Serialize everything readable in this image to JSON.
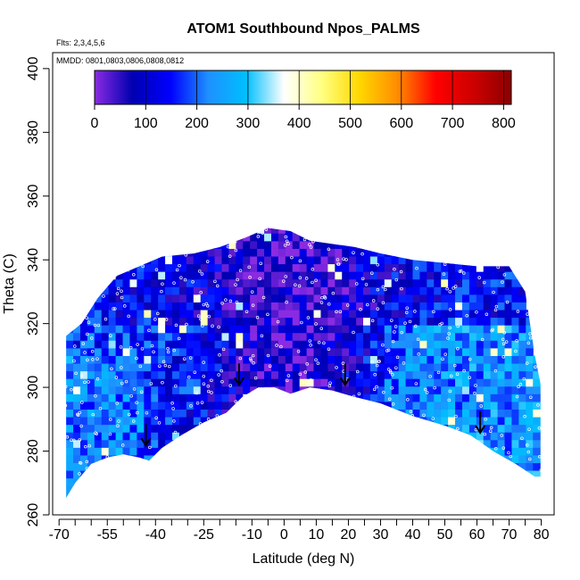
{
  "chart_data": {
    "type": "heatmap",
    "title": "ATOM1 Southbound Npos_PALMS",
    "subtitle_flights": "Flts: 2,3,4,5,6",
    "subtitle_dates": "MMDD: 0801,0803,0806,0808,0812",
    "xlabel": "Latitude (deg N)",
    "ylabel": "Theta (C)",
    "xlim": [
      -72,
      84
    ],
    "ylim": [
      260,
      405
    ],
    "x_ticks": [
      -70,
      -55,
      -40,
      -25,
      -10,
      0,
      10,
      20,
      30,
      40,
      50,
      60,
      70,
      80
    ],
    "x_minor_ticks": [
      -65,
      -60,
      -50,
      -45,
      -35,
      -30,
      -20,
      -15,
      -5,
      5,
      15,
      25,
      35,
      45,
      55,
      65,
      75
    ],
    "y_ticks": [
      260,
      280,
      300,
      320,
      340,
      360,
      380,
      400
    ],
    "colorbar": {
      "ticks": [
        0,
        100,
        200,
        300,
        400,
        500,
        600,
        700,
        800
      ],
      "range": [
        0,
        815
      ],
      "colors": [
        "#8a2be2",
        "#0000b0",
        "#0000ff",
        "#1e90ff",
        "#00bfff",
        "#ffffff",
        "#ffff80",
        "#ffd700",
        "#ff8c00",
        "#ff0000",
        "#cd0000",
        "#8b0000"
      ]
    },
    "bottom_boundary": [
      {
        "lat": -68,
        "theta": 265
      },
      {
        "lat": -65,
        "theta": 270
      },
      {
        "lat": -60,
        "theta": 276
      },
      {
        "lat": -55,
        "theta": 278
      },
      {
        "lat": -50,
        "theta": 279
      },
      {
        "lat": -45,
        "theta": 278
      },
      {
        "lat": -42,
        "theta": 277
      },
      {
        "lat": -38,
        "theta": 281
      },
      {
        "lat": -32,
        "theta": 285
      },
      {
        "lat": -25,
        "theta": 289
      },
      {
        "lat": -18,
        "theta": 292
      },
      {
        "lat": -13,
        "theta": 297
      },
      {
        "lat": -8,
        "theta": 300
      },
      {
        "lat": -3,
        "theta": 300
      },
      {
        "lat": 2,
        "theta": 298
      },
      {
        "lat": 8,
        "theta": 300
      },
      {
        "lat": 15,
        "theta": 299
      },
      {
        "lat": 22,
        "theta": 297
      },
      {
        "lat": 30,
        "theta": 295
      },
      {
        "lat": 40,
        "theta": 291
      },
      {
        "lat": 50,
        "theta": 288
      },
      {
        "lat": 58,
        "theta": 285
      },
      {
        "lat": 65,
        "theta": 280
      },
      {
        "lat": 72,
        "theta": 276
      },
      {
        "lat": 78,
        "theta": 272
      },
      {
        "lat": 80,
        "theta": 272
      }
    ],
    "top_boundary": [
      {
        "lat": -68,
        "theta": 316
      },
      {
        "lat": -63,
        "theta": 320
      },
      {
        "lat": -58,
        "theta": 328
      },
      {
        "lat": -52,
        "theta": 335
      },
      {
        "lat": -45,
        "theta": 338
      },
      {
        "lat": -38,
        "theta": 341
      },
      {
        "lat": -28,
        "theta": 342
      },
      {
        "lat": -20,
        "theta": 344
      },
      {
        "lat": -12,
        "theta": 347
      },
      {
        "lat": -5,
        "theta": 350
      },
      {
        "lat": 2,
        "theta": 349
      },
      {
        "lat": 8,
        "theta": 346
      },
      {
        "lat": 15,
        "theta": 345
      },
      {
        "lat": 22,
        "theta": 344
      },
      {
        "lat": 30,
        "theta": 342
      },
      {
        "lat": 40,
        "theta": 340
      },
      {
        "lat": 50,
        "theta": 339
      },
      {
        "lat": 60,
        "theta": 338
      },
      {
        "lat": 70,
        "theta": 338
      },
      {
        "lat": 75,
        "theta": 330
      },
      {
        "lat": 78,
        "theta": 310
      },
      {
        "lat": 80,
        "theta": 300
      }
    ],
    "tropopause_arrows": [
      {
        "lat": -43,
        "theta": 284
      },
      {
        "lat": -14,
        "theta": 303
      },
      {
        "lat": 19,
        "theta": 303
      },
      {
        "lat": 61,
        "theta": 288
      }
    ]
  }
}
